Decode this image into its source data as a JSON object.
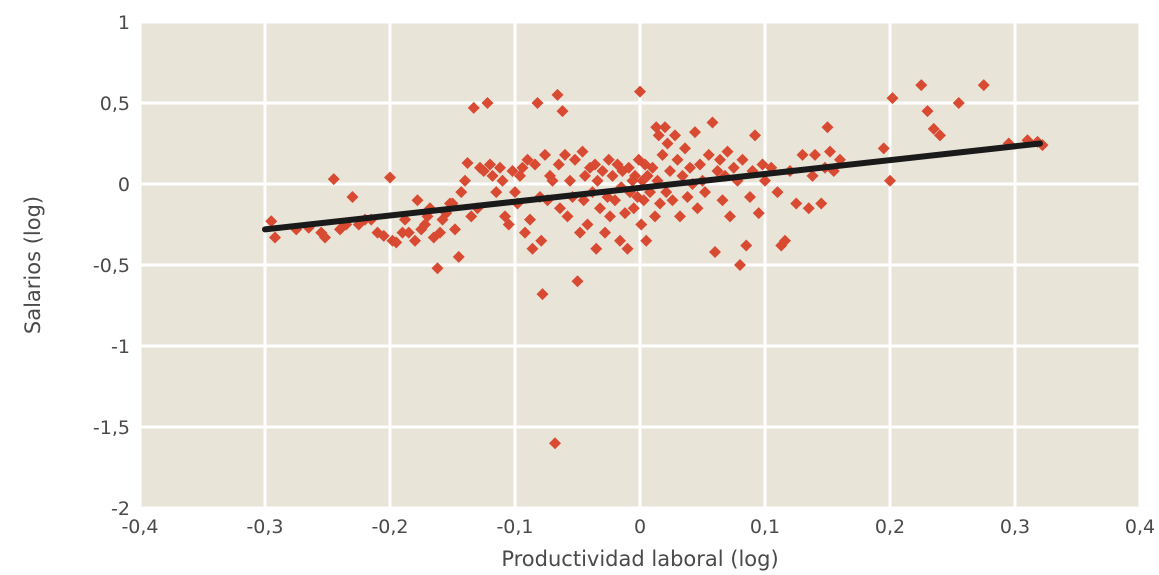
{
  "chart_data": {
    "type": "scatter",
    "title": "",
    "xlabel": "Productividad laboral (log)",
    "ylabel": "Salarios (log)",
    "xlim": [
      -0.4,
      0.4
    ],
    "ylim": [
      -2,
      1
    ],
    "xticks": [
      -0.4,
      -0.3,
      -0.2,
      -0.1,
      0,
      0.1,
      0.2,
      0.3,
      0.4
    ],
    "yticks": [
      -2,
      -1.5,
      -1,
      -0.5,
      0,
      0.5,
      1
    ],
    "xtick_labels": [
      "-0,4",
      "-0,3",
      "-0,2",
      "-0,1",
      "0",
      "0,1",
      "0,2",
      "0,3",
      "0,4"
    ],
    "ytick_labels": [
      "-2",
      "-1,5",
      "-1",
      "-0,5",
      "0",
      "0,5",
      "1"
    ],
    "grid": true,
    "colors": {
      "background": "#e8e4d8",
      "grid": "#ffffff",
      "points": "#d94a32",
      "trend": "#1a1a1a"
    },
    "trendline": {
      "x": [
        -0.3,
        0.32
      ],
      "y": [
        -0.28,
        0.25
      ]
    },
    "series": [
      {
        "marker": "diamond",
        "points": [
          [
            -0.295,
            -0.23
          ],
          [
            -0.292,
            -0.33
          ],
          [
            -0.275,
            -0.28
          ],
          [
            -0.265,
            -0.27
          ],
          [
            -0.255,
            -0.3
          ],
          [
            -0.252,
            -0.33
          ],
          [
            -0.245,
            0.03
          ],
          [
            -0.24,
            -0.28
          ],
          [
            -0.235,
            -0.25
          ],
          [
            -0.23,
            -0.08
          ],
          [
            -0.225,
            -0.25
          ],
          [
            -0.22,
            -0.22
          ],
          [
            -0.215,
            -0.22
          ],
          [
            -0.21,
            -0.3
          ],
          [
            -0.205,
            -0.32
          ],
          [
            -0.2,
            0.04
          ],
          [
            -0.198,
            -0.35
          ],
          [
            -0.195,
            -0.36
          ],
          [
            -0.19,
            -0.3
          ],
          [
            -0.188,
            -0.22
          ],
          [
            -0.185,
            -0.3
          ],
          [
            -0.18,
            -0.35
          ],
          [
            -0.178,
            -0.1
          ],
          [
            -0.175,
            -0.28
          ],
          [
            -0.172,
            -0.25
          ],
          [
            -0.17,
            -0.2
          ],
          [
            -0.168,
            -0.15
          ],
          [
            -0.165,
            -0.33
          ],
          [
            -0.162,
            -0.52
          ],
          [
            -0.16,
            -0.3
          ],
          [
            -0.158,
            -0.22
          ],
          [
            -0.155,
            -0.18
          ],
          [
            -0.152,
            -0.12
          ],
          [
            -0.15,
            -0.12
          ],
          [
            -0.148,
            -0.28
          ],
          [
            -0.145,
            -0.45
          ],
          [
            -0.143,
            -0.05
          ],
          [
            -0.14,
            0.02
          ],
          [
            -0.138,
            0.13
          ],
          [
            -0.135,
            -0.2
          ],
          [
            -0.133,
            0.47
          ],
          [
            -0.13,
            -0.15
          ],
          [
            -0.128,
            0.1
          ],
          [
            -0.125,
            0.08
          ],
          [
            -0.122,
            0.5
          ],
          [
            -0.12,
            0.12
          ],
          [
            -0.118,
            0.05
          ],
          [
            -0.115,
            -0.05
          ],
          [
            -0.112,
            0.1
          ],
          [
            -0.11,
            0.02
          ],
          [
            -0.108,
            -0.2
          ],
          [
            -0.105,
            -0.25
          ],
          [
            -0.102,
            0.08
          ],
          [
            -0.1,
            -0.05
          ],
          [
            -0.098,
            -0.12
          ],
          [
            -0.096,
            0.05
          ],
          [
            -0.094,
            0.1
          ],
          [
            -0.092,
            -0.3
          ],
          [
            -0.09,
            0.15
          ],
          [
            -0.088,
            -0.22
          ],
          [
            -0.086,
            -0.4
          ],
          [
            -0.084,
            0.12
          ],
          [
            -0.082,
            0.5
          ],
          [
            -0.08,
            -0.08
          ],
          [
            -0.079,
            -0.35
          ],
          [
            -0.078,
            -0.68
          ],
          [
            -0.076,
            0.18
          ],
          [
            -0.074,
            -0.1
          ],
          [
            -0.072,
            0.05
          ],
          [
            -0.07,
            0.02
          ],
          [
            -0.068,
            -1.6
          ],
          [
            -0.066,
            0.55
          ],
          [
            -0.065,
            0.12
          ],
          [
            -0.064,
            -0.15
          ],
          [
            -0.062,
            0.45
          ],
          [
            -0.06,
            0.18
          ],
          [
            -0.058,
            -0.2
          ],
          [
            -0.056,
            0.02
          ],
          [
            -0.054,
            -0.08
          ],
          [
            -0.052,
            0.15
          ],
          [
            -0.05,
            -0.6
          ],
          [
            -0.048,
            -0.3
          ],
          [
            -0.046,
            0.2
          ],
          [
            -0.045,
            -0.1
          ],
          [
            -0.044,
            0.05
          ],
          [
            -0.042,
            -0.25
          ],
          [
            -0.04,
            0.1
          ],
          [
            -0.038,
            -0.05
          ],
          [
            -0.036,
            0.12
          ],
          [
            -0.035,
            -0.4
          ],
          [
            -0.034,
            0.02
          ],
          [
            -0.032,
            -0.15
          ],
          [
            -0.03,
            0.08
          ],
          [
            -0.028,
            -0.3
          ],
          [
            -0.026,
            -0.08
          ],
          [
            -0.025,
            0.15
          ],
          [
            -0.024,
            -0.2
          ],
          [
            -0.022,
            0.05
          ],
          [
            -0.02,
            -0.1
          ],
          [
            -0.018,
            0.12
          ],
          [
            -0.016,
            -0.35
          ],
          [
            -0.015,
            -0.02
          ],
          [
            -0.014,
            0.08
          ],
          [
            -0.012,
            -0.18
          ],
          [
            -0.01,
            -0.4
          ],
          [
            -0.009,
            0.1
          ],
          [
            -0.008,
            -0.05
          ],
          [
            -0.006,
            0.02
          ],
          [
            -0.005,
            -0.15
          ],
          [
            -0.004,
            0.05
          ],
          [
            -0.002,
            -0.08
          ],
          [
            -0.001,
            0.15
          ],
          [
            0.0,
            0.57
          ],
          [
            0.001,
            -0.25
          ],
          [
            0.002,
            0.02
          ],
          [
            0.003,
            -0.1
          ],
          [
            0.004,
            0.12
          ],
          [
            0.005,
            -0.35
          ],
          [
            0.006,
            0.05
          ],
          [
            0.008,
            -0.05
          ],
          [
            0.01,
            0.1
          ],
          [
            0.012,
            -0.2
          ],
          [
            0.013,
            0.35
          ],
          [
            0.014,
            0.02
          ],
          [
            0.015,
            0.3
          ],
          [
            0.016,
            -0.12
          ],
          [
            0.018,
            0.18
          ],
          [
            0.02,
            0.35
          ],
          [
            0.021,
            -0.05
          ],
          [
            0.022,
            0.25
          ],
          [
            0.024,
            0.08
          ],
          [
            0.026,
            -0.1
          ],
          [
            0.028,
            0.3
          ],
          [
            0.03,
            0.15
          ],
          [
            0.032,
            -0.2
          ],
          [
            0.034,
            0.05
          ],
          [
            0.036,
            0.22
          ],
          [
            0.038,
            -0.08
          ],
          [
            0.04,
            0.1
          ],
          [
            0.042,
            0.0
          ],
          [
            0.044,
            0.32
          ],
          [
            0.046,
            -0.15
          ],
          [
            0.048,
            0.12
          ],
          [
            0.05,
            0.02
          ],
          [
            0.052,
            -0.05
          ],
          [
            0.055,
            0.18
          ],
          [
            0.058,
            0.38
          ],
          [
            0.06,
            -0.42
          ],
          [
            0.062,
            0.08
          ],
          [
            0.064,
            0.15
          ],
          [
            0.066,
            -0.1
          ],
          [
            0.068,
            0.05
          ],
          [
            0.07,
            0.2
          ],
          [
            0.072,
            -0.2
          ],
          [
            0.075,
            0.1
          ],
          [
            0.078,
            0.02
          ],
          [
            0.08,
            -0.5
          ],
          [
            0.082,
            0.15
          ],
          [
            0.085,
            -0.38
          ],
          [
            0.088,
            -0.08
          ],
          [
            0.09,
            0.08
          ],
          [
            0.092,
            0.3
          ],
          [
            0.095,
            -0.18
          ],
          [
            0.098,
            0.12
          ],
          [
            0.1,
            0.02
          ],
          [
            0.105,
            0.1
          ],
          [
            0.11,
            -0.05
          ],
          [
            0.113,
            -0.38
          ],
          [
            0.116,
            -0.35
          ],
          [
            0.12,
            0.08
          ],
          [
            0.125,
            -0.12
          ],
          [
            0.13,
            0.18
          ],
          [
            0.135,
            -0.15
          ],
          [
            0.138,
            0.05
          ],
          [
            0.14,
            0.18
          ],
          [
            0.145,
            -0.12
          ],
          [
            0.148,
            0.1
          ],
          [
            0.15,
            0.35
          ],
          [
            0.152,
            0.2
          ],
          [
            0.155,
            0.08
          ],
          [
            0.16,
            0.15
          ],
          [
            0.195,
            0.22
          ],
          [
            0.2,
            0.02
          ],
          [
            0.202,
            0.53
          ],
          [
            0.225,
            0.61
          ],
          [
            0.23,
            0.45
          ],
          [
            0.235,
            0.34
          ],
          [
            0.24,
            0.3
          ],
          [
            0.255,
            0.5
          ],
          [
            0.275,
            0.61
          ],
          [
            0.295,
            0.25
          ],
          [
            0.31,
            0.27
          ],
          [
            0.318,
            0.26
          ],
          [
            0.322,
            0.24
          ]
        ]
      }
    ]
  }
}
